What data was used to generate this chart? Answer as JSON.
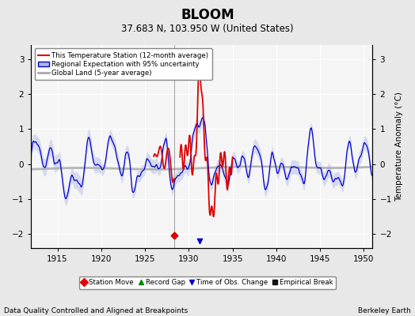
{
  "title": "BLOOM",
  "subtitle": "37.683 N, 103.950 W (United States)",
  "xlabel_note": "Data Quality Controlled and Aligned at Breakpoints",
  "xlabel_right": "Berkeley Earth",
  "ylabel": "Temperature Anomaly (°C)",
  "xlim": [
    1912,
    1951
  ],
  "ylim": [
    -2.4,
    3.4
  ],
  "yticks": [
    -2,
    -1,
    0,
    1,
    2,
    3
  ],
  "xticks": [
    1915,
    1920,
    1925,
    1930,
    1935,
    1940,
    1945,
    1950
  ],
  "bg_color": "#e8e8e8",
  "plot_bg_color": "#f5f5f5",
  "grid_color": "#ffffff",
  "red_color": "#dd0000",
  "blue_color": "#0000cc",
  "blue_fill_color": "#b0b8e8",
  "gray_color": "#aaaaaa",
  "legend_entries": [
    "This Temperature Station (12-month average)",
    "Regional Expectation with 95% uncertainty",
    "Global Land (5-year average)"
  ],
  "marker_legend": [
    {
      "label": "Station Move",
      "color": "#dd0000",
      "marker": "D"
    },
    {
      "label": "Record Gap",
      "color": "#008800",
      "marker": "^"
    },
    {
      "label": "Time of Obs. Change",
      "color": "#0000cc",
      "marker": "v"
    },
    {
      "label": "Empirical Break",
      "color": "#111111",
      "marker": "s"
    }
  ],
  "station_move_x": 1928.3,
  "station_move_y": -2.05,
  "time_obs_x": 1931.2,
  "time_obs_y": -2.2
}
